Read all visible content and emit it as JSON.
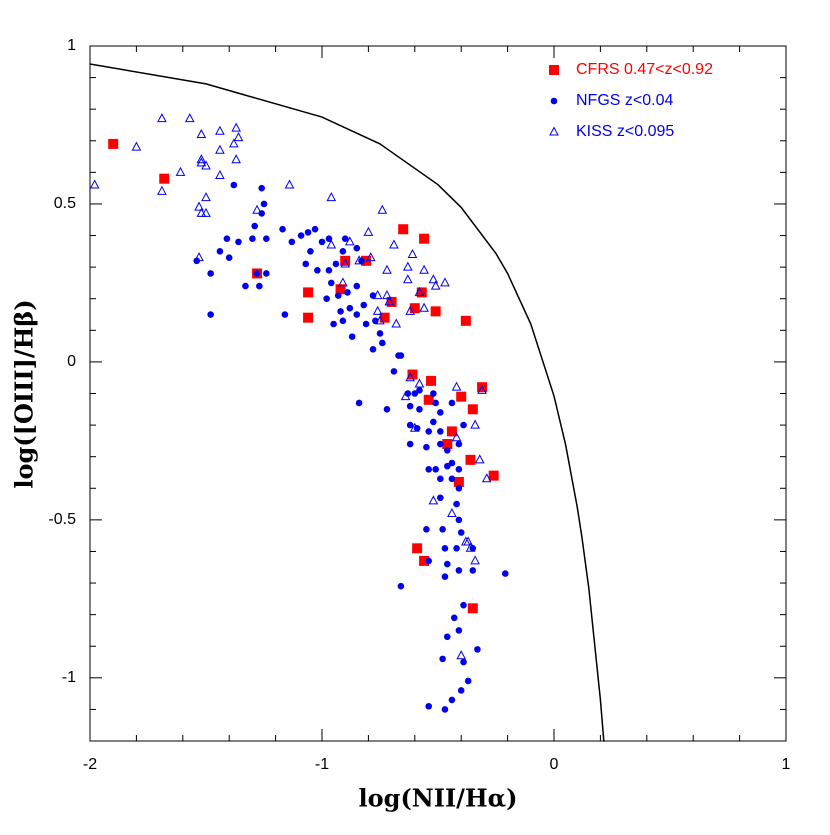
{
  "chart_data": {
    "type": "scatter",
    "x_label": "log(NII/Hα)",
    "y_label": "log([OIII]/Hβ)",
    "xlim": [
      -2,
      1
    ],
    "ylim": [
      -1.2,
      1
    ],
    "xticks": [
      -2,
      -1,
      0,
      1
    ],
    "yticks": [
      -1,
      -0.5,
      0,
      0.5,
      1
    ],
    "xminorticks": [
      -1.8,
      -1.6,
      -1.4,
      -1.2,
      -0.8,
      -0.6,
      -0.4,
      -0.2,
      0.2,
      0.4,
      0.6,
      0.8
    ],
    "yminorticks": [
      -1.1,
      -0.9,
      -0.8,
      -0.7,
      -0.6,
      -0.4,
      -0.3,
      -0.2,
      -0.1,
      0.1,
      0.2,
      0.3,
      0.4,
      0.6,
      0.7,
      0.8,
      0.9
    ],
    "legend": "upper right",
    "curve": {
      "color": "#000000",
      "x": [
        -2,
        -1.5,
        -1,
        -0.75,
        -0.5,
        -0.4,
        -0.25,
        -0.2,
        -0.1,
        0,
        0.05,
        0.1,
        0.12,
        0.15,
        0.2,
        0.215
      ],
      "y": [
        0.943,
        0.88,
        0.775,
        0.69,
        0.561,
        0.489,
        0.343,
        0.28,
        0.12,
        -0.108,
        -0.262,
        -0.459,
        -0.553,
        -0.716,
        -1.069,
        -1.202
      ]
    },
    "series": [
      {
        "name": "CFRS 0.47<z<0.92",
        "color": "#ff0000",
        "marker": "square",
        "x": [
          -1.9,
          -1.68,
          -1.28,
          -1.06,
          -1.06,
          -0.9,
          -0.81,
          -0.92,
          -0.7,
          -0.73,
          -0.65,
          -0.56,
          -0.57,
          -0.6,
          -0.51,
          -0.38,
          -0.61,
          -0.53,
          -0.54,
          -0.4,
          -0.31,
          -0.35,
          -0.44,
          -0.46,
          -0.36,
          -0.26,
          -0.41,
          -0.59,
          -0.56,
          -0.35
        ],
        "values": [
          0.69,
          0.58,
          0.28,
          0.22,
          0.14,
          0.32,
          0.32,
          0.23,
          0.19,
          0.14,
          0.42,
          0.39,
          0.22,
          0.17,
          0.16,
          0.13,
          -0.04,
          -0.06,
          -0.12,
          -0.11,
          -0.08,
          -0.15,
          -0.22,
          -0.26,
          -0.31,
          -0.36,
          -0.38,
          -0.59,
          -0.63,
          -0.78
        ]
      },
      {
        "name": "NFGS z<0.04",
        "color": "#0000ee",
        "marker": "circle",
        "x": [
          -1.38,
          -1.26,
          -1.25,
          -1.26,
          -1.29,
          -1.41,
          -1.36,
          -1.3,
          -1.24,
          -1.44,
          -1.4,
          -1.54,
          -1.48,
          -1.28,
          -1.24,
          -1.33,
          -1.27,
          -1.48,
          -1.17,
          -1.13,
          -1.09,
          -1.06,
          -1.03,
          -1.0,
          -0.97,
          -1.05,
          -1.07,
          -1.02,
          -0.97,
          -0.9,
          -0.91,
          -0.85,
          -0.83,
          -0.94,
          -0.96,
          -0.89,
          -0.85,
          -0.98,
          -0.93,
          -0.92,
          -0.88,
          -0.91,
          -0.95,
          -1.16,
          -0.85,
          -0.78,
          -0.82,
          -0.77,
          -0.81,
          -0.87,
          -0.78,
          -0.75,
          -0.74,
          -0.67,
          -0.66,
          -0.69,
          -0.84,
          -0.72,
          -0.63,
          -0.6,
          -0.58,
          -0.52,
          -0.62,
          -0.58,
          -0.51,
          -0.49,
          -0.44,
          -0.62,
          -0.59,
          -0.52,
          -0.54,
          -0.49,
          -0.39,
          -0.62,
          -0.55,
          -0.49,
          -0.46,
          -0.41,
          -0.54,
          -0.51,
          -0.46,
          -0.44,
          -0.49,
          -0.44,
          -0.41,
          -0.41,
          -0.49,
          -0.42,
          -0.41,
          -0.55,
          -0.48,
          -0.4,
          -0.47,
          -0.42,
          -0.35,
          -0.54,
          -0.46,
          -0.41,
          -0.47,
          -0.66,
          -0.21,
          -0.35,
          -0.43,
          -0.39,
          -0.41,
          -0.46,
          -0.33,
          -0.48,
          -0.39,
          -0.37,
          -0.4,
          -0.44,
          -0.54,
          -0.47
        ],
        "values": [
          0.56,
          0.55,
          0.5,
          0.47,
          0.43,
          0.39,
          0.38,
          0.39,
          0.39,
          0.35,
          0.33,
          0.32,
          0.28,
          0.28,
          0.28,
          0.24,
          0.24,
          0.15,
          0.42,
          0.38,
          0.4,
          0.41,
          0.42,
          0.38,
          0.39,
          0.35,
          0.31,
          0.29,
          0.29,
          0.39,
          0.35,
          0.36,
          0.32,
          0.31,
          0.25,
          0.22,
          0.24,
          0.2,
          0.21,
          0.16,
          0.17,
          0.13,
          0.12,
          0.15,
          0.15,
          0.21,
          0.18,
          0.13,
          0.12,
          0.08,
          0.04,
          0.09,
          0.06,
          0.02,
          0.02,
          -0.03,
          -0.13,
          -0.15,
          -0.1,
          -0.1,
          -0.09,
          -0.1,
          -0.14,
          -0.15,
          -0.13,
          -0.16,
          -0.13,
          -0.2,
          -0.21,
          -0.19,
          -0.22,
          -0.22,
          -0.2,
          -0.26,
          -0.27,
          -0.26,
          -0.28,
          -0.26,
          -0.34,
          -0.34,
          -0.33,
          -0.32,
          -0.37,
          -0.37,
          -0.34,
          -0.4,
          -0.43,
          -0.45,
          -0.5,
          -0.53,
          -0.53,
          -0.54,
          -0.59,
          -0.59,
          -0.59,
          -0.63,
          -0.64,
          -0.66,
          -0.68,
          -0.71,
          -0.67,
          -0.66,
          -0.81,
          -0.77,
          -0.85,
          -0.87,
          -0.91,
          -0.94,
          -0.95,
          -1.01,
          -1.04,
          -1.07,
          -1.09,
          -1.1
        ]
      },
      {
        "name": "KISS z<0.095",
        "color": "#0000ee",
        "marker": "triangle",
        "x": [
          -1.69,
          -1.57,
          -1.8,
          -1.52,
          -1.44,
          -1.37,
          -1.36,
          -1.38,
          -1.44,
          -1.52,
          -1.52,
          -1.5,
          -1.61,
          -1.98,
          -1.69,
          -1.37,
          -1.44,
          -1.5,
          -1.53,
          -1.52,
          -1.5,
          -1.28,
          -1.14,
          -0.96,
          -1.53,
          -0.8,
          -0.74,
          -0.96,
          -0.88,
          -0.84,
          -0.79,
          -0.69,
          -0.72,
          -0.63,
          -0.61,
          -0.91,
          -0.76,
          -0.72,
          -0.71,
          -0.75,
          -0.68,
          -0.62,
          -0.63,
          -0.58,
          -0.52,
          -0.47,
          -0.56,
          -0.56,
          -0.51,
          -0.76,
          -0.9,
          -0.58,
          -0.62,
          -0.64,
          -0.42,
          -0.31,
          -0.34,
          -0.6,
          -0.42,
          -0.32,
          -0.29,
          -0.52,
          -0.44,
          -0.38,
          -0.36,
          -0.34,
          -0.37,
          -0.4
        ],
        "values": [
          0.77,
          0.77,
          0.68,
          0.72,
          0.73,
          0.74,
          0.71,
          0.69,
          0.67,
          0.64,
          0.63,
          0.62,
          0.6,
          0.56,
          0.54,
          0.64,
          0.59,
          0.52,
          0.49,
          0.47,
          0.47,
          0.48,
          0.56,
          0.52,
          0.33,
          0.41,
          0.48,
          0.37,
          0.38,
          0.32,
          0.33,
          0.37,
          0.29,
          0.3,
          0.34,
          0.25,
          0.21,
          0.21,
          0.19,
          0.13,
          0.12,
          0.16,
          0.26,
          0.22,
          0.26,
          0.25,
          0.29,
          0.17,
          0.24,
          0.16,
          0.31,
          -0.07,
          -0.05,
          -0.11,
          -0.08,
          -0.09,
          -0.2,
          -0.21,
          -0.24,
          -0.31,
          -0.37,
          -0.44,
          -0.48,
          -0.57,
          -0.59,
          -0.63,
          -0.57,
          -0.93
        ]
      }
    ]
  }
}
